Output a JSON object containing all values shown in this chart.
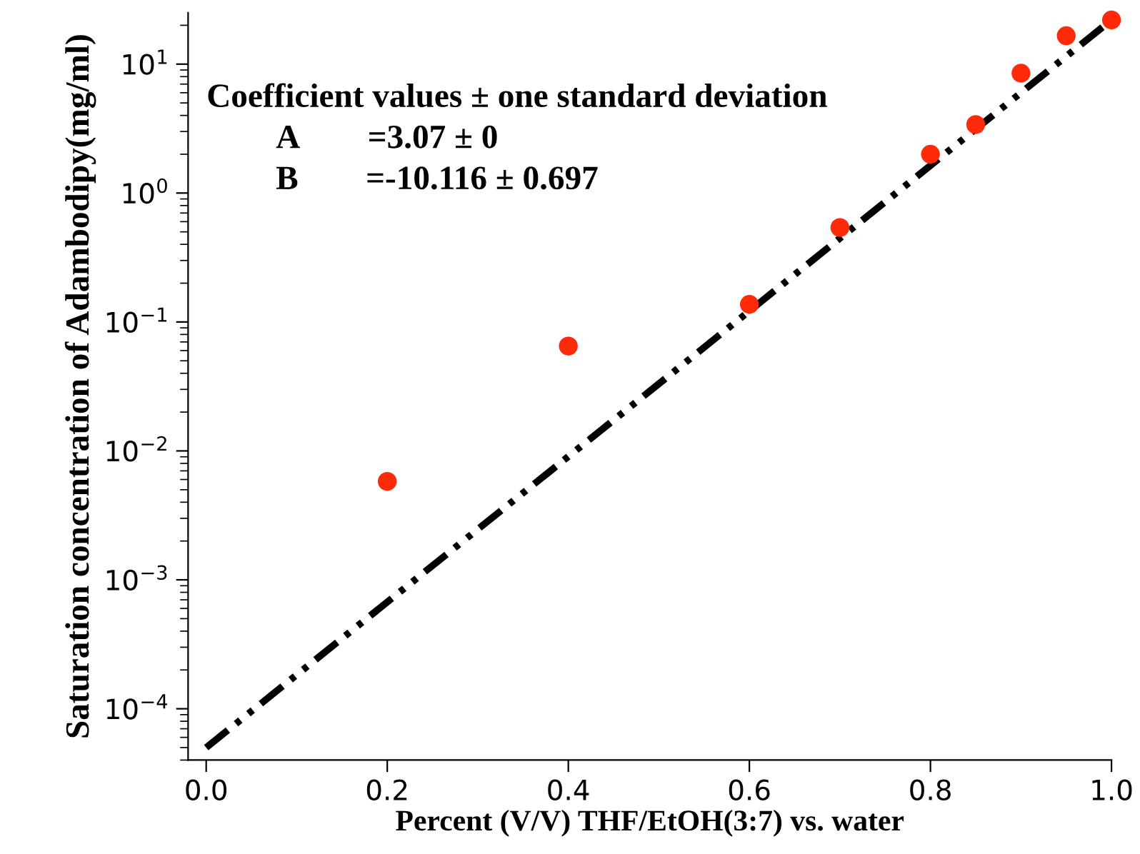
{
  "chart_data": {
    "type": "scatter",
    "xlabel": "Percent (V/V) THF/EtOH(3:7) vs. water",
    "ylabel": "Saturation concentration of Adambodipy(mg/ml)",
    "log": "y",
    "xlim": [
      -0.02,
      1.0
    ],
    "ylim": [
      4e-05,
      25
    ],
    "xticks": [
      {
        "value": 0,
        "label": "0.0"
      },
      0.2,
      0.4,
      0.6,
      0.8,
      {
        "value": 1,
        "label": "1.0"
      }
    ],
    "yticks": [
      {
        "value": 0.0001,
        "label": "10$^{−4}$"
      },
      {
        "value": 0.001,
        "label": "10$^{−3}$"
      },
      {
        "value": 0.01,
        "label": "10$^{−2}$"
      },
      {
        "value": 0.1,
        "label": "10$^{−1}$"
      },
      {
        "value": 1,
        "label": "10$^{0}$"
      },
      {
        "value": 10,
        "label": "10$^{1}$"
      }
    ],
    "grid": false,
    "legend": false,
    "marker": "circle",
    "annotations": [
      "Coefficient values ± one standard deviation",
      "A  =3.07 ± 0",
      "B  =-10.116 ± 0.697"
    ],
    "series": [
      {
        "color": "#ff2a0a",
        "x": [
          0.2,
          0.4,
          0.6,
          0.7,
          0.8,
          0.85,
          0.9,
          0.95,
          1.0
        ],
        "values": [
          0.0058,
          0.065,
          0.137,
          0.54,
          2.0,
          3.4,
          8.5,
          16.6,
          22
        ]
      },
      {
        "type": "line",
        "color": "#000000",
        "line_style": "dashed",
        "marker": "none",
        "x": [
          0,
          1
        ],
        "values": [
          5e-05,
          22
        ]
      }
    ]
  }
}
